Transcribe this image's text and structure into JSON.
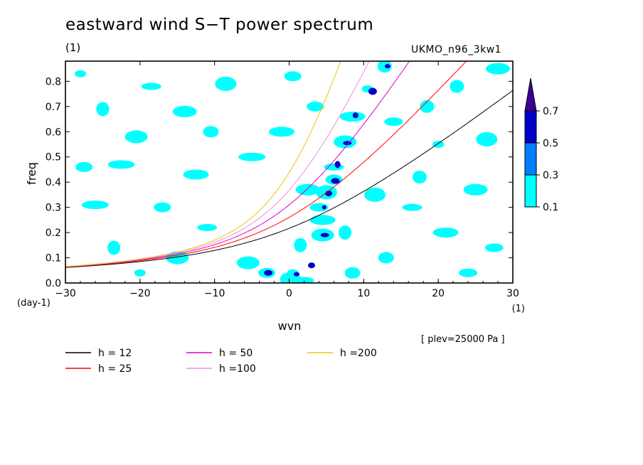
{
  "header": {
    "title": "eastward wind S−T power spectrum",
    "title_unit": "(1)",
    "run_label": "UKMO_n96_3kw1",
    "level_note": "[ plev=25000 Pa ]"
  },
  "chart_data": {
    "type": "heatmap",
    "title": "eastward wind S−T power spectrum",
    "xlabel": "wvn",
    "xunit": "(1)",
    "ylabel": "freq",
    "yunit": "(day-1)",
    "xlim": [
      -30,
      30
    ],
    "ylim": [
      0,
      0.88
    ],
    "xticks": [
      -30,
      -20,
      -10,
      0,
      10,
      20,
      30
    ],
    "yticks": [
      0.0,
      0.1,
      0.2,
      0.3,
      0.4,
      0.5,
      0.6,
      0.7,
      0.8
    ],
    "grid": false,
    "colorbar": {
      "levels": [
        "0.1",
        "0.3",
        "0.5",
        "0.7"
      ],
      "colors": [
        "#00ffff",
        "#0080ff",
        "#0000c8",
        "#3c0096"
      ],
      "extend": "max"
    },
    "contour_patches": [
      {
        "x": 0.5,
        "y": 0.04,
        "level": 1
      },
      {
        "x": 0.2,
        "y": 0.015,
        "level": 1
      },
      {
        "x": 3.0,
        "y": 0.07,
        "level": 2
      },
      {
        "x": 1.0,
        "y": 0.035,
        "level": 2
      },
      {
        "x": -3.0,
        "y": 0.04,
        "level": 1
      },
      {
        "x": -2.8,
        "y": 0.04,
        "level": 2
      },
      {
        "x": 2.0,
        "y": 0.01,
        "level": 1
      },
      {
        "x": 1.5,
        "y": 0.15,
        "level": 1
      },
      {
        "x": 4.5,
        "y": 0.19,
        "level": 1
      },
      {
        "x": 4.8,
        "y": 0.19,
        "level": 2
      },
      {
        "x": 4.5,
        "y": 0.25,
        "level": 1
      },
      {
        "x": 4.0,
        "y": 0.3,
        "level": 1
      },
      {
        "x": 4.7,
        "y": 0.3,
        "level": 2
      },
      {
        "x": 5.0,
        "y": 0.36,
        "level": 1
      },
      {
        "x": 5.3,
        "y": 0.355,
        "level": 2
      },
      {
        "x": 2.5,
        "y": 0.37,
        "level": 1
      },
      {
        "x": 6.0,
        "y": 0.41,
        "level": 1
      },
      {
        "x": 6.2,
        "y": 0.405,
        "level": 2
      },
      {
        "x": 6.0,
        "y": 0.46,
        "level": 1
      },
      {
        "x": 6.5,
        "y": 0.47,
        "level": 2
      },
      {
        "x": 7.5,
        "y": 0.56,
        "level": 1
      },
      {
        "x": 7.8,
        "y": 0.555,
        "level": 2
      },
      {
        "x": 8.5,
        "y": 0.66,
        "level": 1
      },
      {
        "x": 8.9,
        "y": 0.665,
        "level": 2
      },
      {
        "x": 10.5,
        "y": 0.77,
        "level": 1
      },
      {
        "x": 11.2,
        "y": 0.76,
        "level": 2
      },
      {
        "x": 12.8,
        "y": 0.86,
        "level": 1
      },
      {
        "x": 13.2,
        "y": 0.86,
        "level": 2
      },
      {
        "x": 0.5,
        "y": 0.82,
        "level": 1
      },
      {
        "x": -5.0,
        "y": 0.5,
        "level": 1
      },
      {
        "x": -18.5,
        "y": 0.78,
        "level": 1
      },
      {
        "x": -25.0,
        "y": 0.69,
        "level": 1
      },
      {
        "x": -20.5,
        "y": 0.58,
        "level": 1
      },
      {
        "x": -10.5,
        "y": 0.6,
        "level": 1
      },
      {
        "x": -1.0,
        "y": 0.6,
        "level": 1
      },
      {
        "x": 14.0,
        "y": 0.64,
        "level": 1
      },
      {
        "x": 20.0,
        "y": 0.55,
        "level": 1
      },
      {
        "x": 26.5,
        "y": 0.57,
        "level": 1
      },
      {
        "x": 17.5,
        "y": 0.42,
        "level": 1
      },
      {
        "x": 25.0,
        "y": 0.37,
        "level": 1
      },
      {
        "x": -17.0,
        "y": 0.3,
        "level": 1
      },
      {
        "x": -26.0,
        "y": 0.31,
        "level": 1
      },
      {
        "x": -11.0,
        "y": 0.22,
        "level": 1
      },
      {
        "x": -23.5,
        "y": 0.14,
        "level": 1
      },
      {
        "x": -15.0,
        "y": 0.1,
        "level": 1
      },
      {
        "x": 13.0,
        "y": 0.1,
        "level": 1
      },
      {
        "x": 21.0,
        "y": 0.2,
        "level": 1
      },
      {
        "x": 27.5,
        "y": 0.14,
        "level": 1
      },
      {
        "x": -28.0,
        "y": 0.83,
        "level": 1
      },
      {
        "x": -8.5,
        "y": 0.79,
        "level": 1
      },
      {
        "x": 22.5,
        "y": 0.78,
        "level": 1
      },
      {
        "x": 28.0,
        "y": 0.85,
        "level": 1
      },
      {
        "x": -27.5,
        "y": 0.46,
        "level": 1
      },
      {
        "x": -22.5,
        "y": 0.47,
        "level": 1
      },
      {
        "x": 16.5,
        "y": 0.3,
        "level": 1
      },
      {
        "x": 7.5,
        "y": 0.2,
        "level": 1
      },
      {
        "x": -5.5,
        "y": 0.08,
        "level": 1
      },
      {
        "x": 8.5,
        "y": 0.04,
        "level": 1
      },
      {
        "x": -12.5,
        "y": 0.43,
        "level": 1
      },
      {
        "x": 24.0,
        "y": 0.04,
        "level": 1
      },
      {
        "x": -20.0,
        "y": 0.04,
        "level": 1
      },
      {
        "x": 11.5,
        "y": 0.35,
        "level": 1
      },
      {
        "x": 18.5,
        "y": 0.7,
        "level": 1
      },
      {
        "x": -14.0,
        "y": 0.68,
        "level": 1
      },
      {
        "x": 3.5,
        "y": 0.7,
        "level": 1
      }
    ],
    "series": [
      {
        "name": "h = 12",
        "h": 12,
        "color": "#000000"
      },
      {
        "name": "h = 25",
        "h": 25,
        "color": "#ff0000"
      },
      {
        "name": "h = 50",
        "h": 50,
        "color": "#e000c0"
      },
      {
        "name": "h =100",
        "h": 100,
        "color": "#e890e8"
      },
      {
        "name": "h =200",
        "h": 200,
        "color": "#e8c800"
      }
    ]
  }
}
